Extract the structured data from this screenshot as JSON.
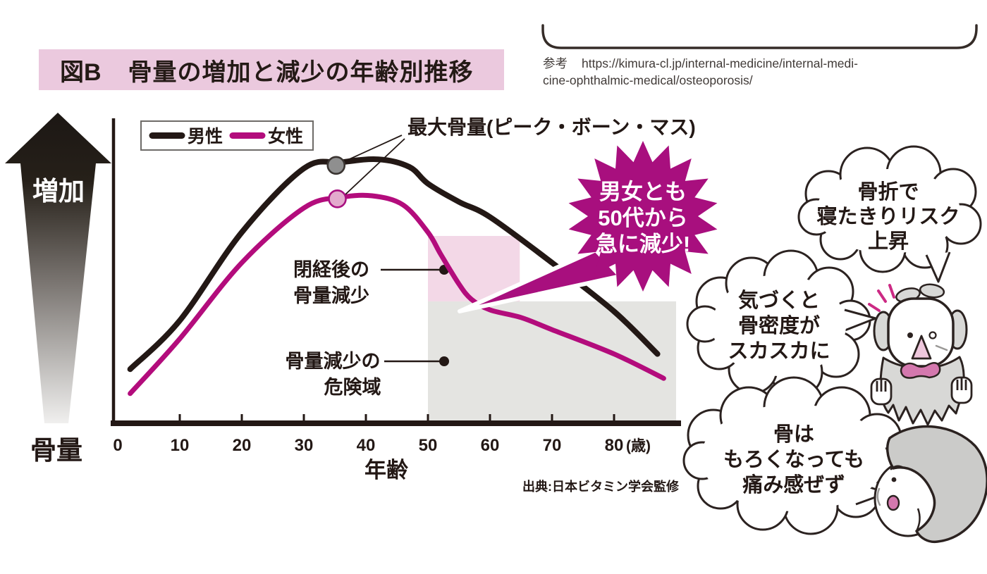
{
  "title": {
    "tag": "図B",
    "text": "骨量の増加と減少の年齢別推移",
    "bg_color": "#ebc9de"
  },
  "reference": {
    "prefix": "参考",
    "url_line1": "https://kimura-cl.jp/internal-medicine/internal-medi-",
    "url_line2": "cine-ophthalmic-medical/osteoporosis/"
  },
  "chart_data": {
    "type": "line",
    "title": "骨量の増加と減少の年齢別推移",
    "xlabel": "年齢",
    "x_unit": "(歳)",
    "ylabel": "骨量",
    "y_increase_label": "増加",
    "x_ticks": [
      0,
      10,
      20,
      30,
      40,
      50,
      60,
      70,
      80
    ],
    "x_range": [
      0,
      90
    ],
    "value_scale": "relative bone mass 0-100 (figure has no numeric y axis)",
    "grid": false,
    "legend_position": "top-left",
    "legend": [
      {
        "name": "男性",
        "color": "#231815"
      },
      {
        "name": "女性",
        "color": "#b30c7c"
      }
    ],
    "series": [
      {
        "name": "男性",
        "color": "#231815",
        "x": [
          2,
          10,
          20,
          30,
          36,
          42,
          47,
          50,
          55,
          60,
          70,
          80,
          87
        ],
        "values": [
          18,
          34,
          63,
          84,
          86,
          87,
          84.5,
          79,
          73,
          68,
          53,
          37,
          23
        ]
      },
      {
        "name": "女性",
        "color": "#b30c7c",
        "x": [
          2,
          10,
          20,
          30,
          36,
          41,
          46,
          50,
          52,
          55,
          57,
          60,
          65,
          70,
          80,
          88
        ],
        "values": [
          10,
          28,
          53,
          71,
          74.5,
          75,
          72,
          63,
          56,
          46,
          41,
          37.5,
          35,
          31,
          23,
          15
        ]
      }
    ],
    "peak_markers": [
      {
        "series": "男性",
        "age": 35.2,
        "value": 85,
        "fill": "#8f8f8f",
        "stroke": "#3a3431"
      },
      {
        "series": "女性",
        "age": 35.4,
        "value": 74,
        "fill": "#e3aacd",
        "stroke": "#a81080"
      }
    ],
    "peak_annotation": "最大骨量(ピーク・ボーン・マス)",
    "regions": [
      {
        "name": "danger-zone",
        "age": [
          50,
          90
        ],
        "value": [
          0,
          40.3
        ],
        "color": "#e4e4e1",
        "label_lines": [
          "骨量減少の",
          "危険域"
        ]
      },
      {
        "name": "menopause-zone",
        "age": [
          50,
          64.8
        ],
        "value": [
          40.3,
          61.8
        ],
        "color": "#f3d8e7",
        "label_lines": [
          "閉経後の",
          "骨量減少"
        ]
      }
    ],
    "source": "出典:日本ビタミン学会監修"
  },
  "starburst": {
    "lines": [
      "男女とも",
      "50代から",
      "急に減少!"
    ],
    "color": "#a80f7e"
  },
  "bubbles": [
    {
      "lines": [
        "骨折で",
        "寝たきりリスク",
        "上昇"
      ]
    },
    {
      "lines": [
        "気づくと",
        "骨密度が",
        "スカスカに"
      ]
    },
    {
      "lines": [
        "骨は",
        "もろくなっても",
        "痛み感ぜず"
      ]
    }
  ],
  "characters": [
    {
      "name": "elderly-man",
      "desc": "驚く高齢男性"
    },
    {
      "name": "elderly-woman",
      "desc": "高齢女性"
    }
  ],
  "colors": {
    "magenta": "#b30c7c",
    "burst": "#a80f7e",
    "pink_zone": "#f3d8e7",
    "gray_zone": "#e4e4e1",
    "title_bg": "#ebc9de",
    "ink": "#231815"
  }
}
